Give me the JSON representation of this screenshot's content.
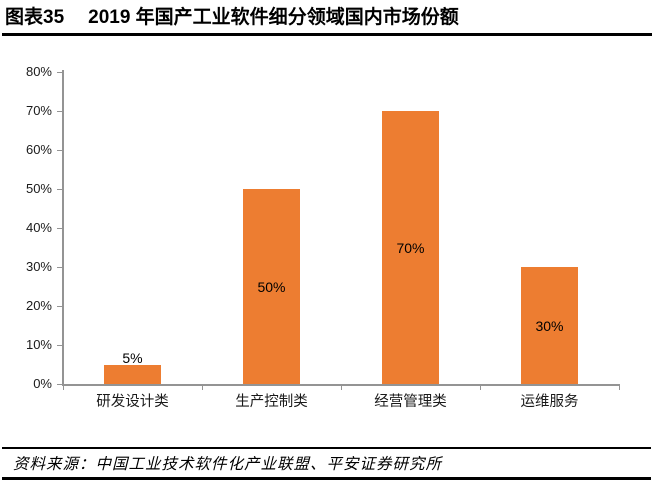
{
  "page": {
    "title_prefix": "图表35",
    "title_main": "2019 年国产工业软件细分领域国内市场份额",
    "source_text": "资料来源：中国工业技术软件化产业联盟、平安证券研究所"
  },
  "chart_data": {
    "type": "bar",
    "title": "2019年国产工业软件细分领域国内市场份额",
    "categories": [
      "研发设计类",
      "生产控制类",
      "经营管理类",
      "运维服务"
    ],
    "values": [
      5,
      50,
      70,
      30
    ],
    "data_labels": [
      "5%",
      "50%",
      "70%",
      "30%"
    ],
    "xlabel": "",
    "ylabel": "",
    "ylim": [
      0,
      80
    ],
    "ytick_step": 10,
    "ytick_labels": [
      "0%",
      "10%",
      "20%",
      "30%",
      "40%",
      "50%",
      "60%",
      "70%",
      "80%"
    ],
    "grid": false,
    "legend_position": "none",
    "bar_color": "#ED7D31",
    "axis_color": "#949494",
    "text_color": "#1a1a1a"
  }
}
